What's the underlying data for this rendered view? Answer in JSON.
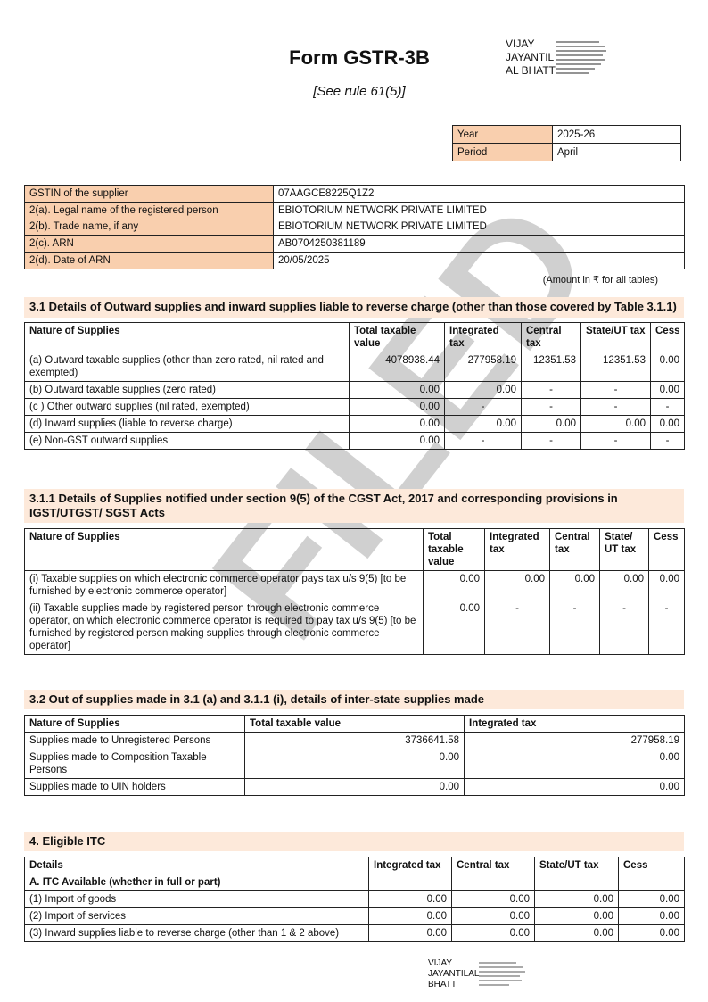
{
  "header": {
    "title": "Form GSTR-3B",
    "subtitle": "[See rule 61(5)]",
    "signature": [
      "VIJAY",
      "JAYANTIL",
      "AL BHATT"
    ]
  },
  "watermark": "FILED",
  "period": {
    "rows": [
      [
        "Year",
        "2025-26"
      ],
      [
        "Period",
        "April"
      ]
    ]
  },
  "supplier": {
    "rows": [
      [
        "GSTIN of the supplier",
        "07AAGCE8225Q1Z2"
      ],
      [
        "2(a). Legal name of the registered person",
        "EBIOTORIUM NETWORK PRIVATE LIMITED"
      ],
      [
        "2(b). Trade name, if any",
        "EBIOTORIUM NETWORK PRIVATE LIMITED"
      ],
      [
        "2(c). ARN",
        "AB0704250381189"
      ],
      [
        "2(d). Date of ARN",
        "20/05/2025"
      ]
    ]
  },
  "amount_note": "(Amount in ₹ for all tables)",
  "sections": [
    {
      "title": "3.1 Details of Outward supplies and inward supplies liable to reverse charge (other than those covered by Table 3.1.1)",
      "header": [
        "Nature of Supplies",
        "Total taxable value",
        "Integrated tax",
        "Central tax",
        "State/UT tax",
        "Cess"
      ],
      "rows": [
        [
          "(a) Outward taxable supplies (other than zero rated, nil rated and exempted)",
          "4078938.44",
          "277958.19",
          "12351.53",
          "12351.53",
          "0.00"
        ],
        [
          "(b) Outward taxable supplies (zero rated)",
          "0.00",
          "0.00",
          "-",
          "-",
          "0.00"
        ],
        [
          "(c ) Other outward supplies (nil rated, exempted)",
          "0.00",
          "-",
          "-",
          "-",
          "-"
        ],
        [
          "(d) Inward supplies (liable to reverse charge)",
          "0.00",
          "0.00",
          "0.00",
          "0.00",
          "0.00"
        ],
        [
          "(e) Non-GST outward supplies",
          "0.00",
          "-",
          "-",
          "-",
          "-"
        ]
      ]
    },
    {
      "title": "3.1.1 Details of Supplies notified under section 9(5) of the CGST Act, 2017 and corresponding provisions in IGST/UTGST/ SGST Acts",
      "header": [
        "Nature of Supplies",
        "Total taxable value",
        "Integrated tax",
        "Central tax",
        "State/ UT tax",
        "Cess"
      ],
      "rows": [
        [
          "(i) Taxable supplies on which electronic commerce operator pays tax u/s 9(5) [to be furnished by electronic commerce operator]",
          "0.00",
          "0.00",
          "0.00",
          "0.00",
          "0.00"
        ],
        [
          "(ii) Taxable supplies made by registered person through electronic commerce operator, on which electronic commerce operator is required to pay tax u/s 9(5) [to be furnished by registered person making supplies through electronic commerce operator]",
          "0.00",
          "-",
          "-",
          "-",
          "-"
        ]
      ]
    },
    {
      "title": "3.2 Out of supplies made in 3.1 (a) and 3.1.1 (i), details of inter-state supplies made",
      "header": [
        "Nature of Supplies",
        "Total taxable value",
        "Integrated tax"
      ],
      "rows": [
        [
          "Supplies made to Unregistered Persons",
          "3736641.58",
          "277958.19"
        ],
        [
          "Supplies made to Composition Taxable Persons",
          "0.00",
          "0.00"
        ],
        [
          "Supplies made to UIN holders",
          "0.00",
          "0.00"
        ]
      ]
    },
    {
      "title": "4.  Eligible ITC",
      "header": [
        "Details",
        "Integrated tax",
        "Central tax",
        "State/UT tax",
        "Cess"
      ],
      "rows": [
        [
          "A. ITC Available (whether in full or part)"
        ],
        [
          "(1) Import of goods",
          "0.00",
          "0.00",
          "0.00",
          "0.00"
        ],
        [
          "(2) Import of services",
          "0.00",
          "0.00",
          "0.00",
          "0.00"
        ],
        [
          "(3) Inward supplies liable to reverse charge (other than 1 & 2 above)",
          "0.00",
          "0.00",
          "0.00",
          "0.00"
        ]
      ]
    }
  ],
  "footer_signature": [
    "VIJAY",
    "JAYANTILAL",
    "BHATT"
  ]
}
